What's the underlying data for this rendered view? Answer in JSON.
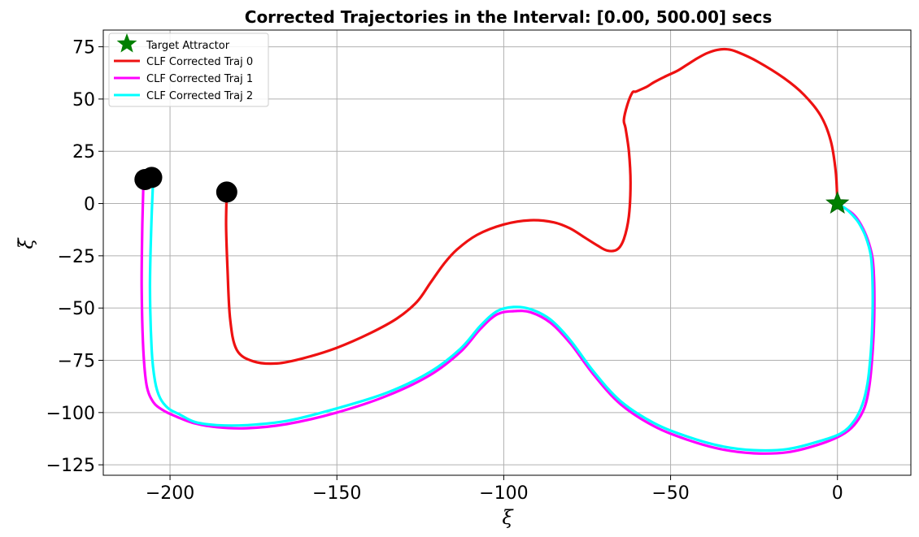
{
  "chart_data": {
    "type": "line",
    "title": "Corrected Trajectories in the Interval: [0.00, 500.00] secs",
    "xlabel": "ξ",
    "ylabel": "ξ̇",
    "xlim": [
      -220,
      22
    ],
    "ylim": [
      -130,
      83
    ],
    "xticks": [
      -200,
      -150,
      -100,
      -50,
      0
    ],
    "xtick_labels": [
      "−200",
      "−150",
      "−100",
      "−50",
      "0"
    ],
    "yticks": [
      75,
      50,
      25,
      0,
      -25,
      -50,
      -75,
      -100,
      -125
    ],
    "ytick_labels": [
      "75",
      "50",
      "25",
      "0",
      "−25",
      "−50",
      "−75",
      "−100",
      "−125"
    ],
    "grid": true,
    "legend_position": "top-left",
    "target": {
      "name": "Target Attractor",
      "x": 0,
      "y": 0,
      "color": "#008000"
    },
    "series": [
      {
        "name": "CLF Corrected Traj 0",
        "color": "#ee1111",
        "start": [
          -183,
          5.5
        ],
        "x": [
          -183,
          -183.2,
          -182.8,
          -182,
          -180,
          -175,
          -168,
          -160,
          -150,
          -140,
          -132,
          -126,
          -122,
          -118,
          -114,
          -108,
          -100,
          -92,
          -85,
          -80,
          -76,
          -72,
          -69,
          -66,
          -64,
          -62.5,
          -62,
          -62.5,
          -63.5,
          -64,
          -63,
          -61.5,
          -60.5,
          -59,
          -57,
          -55,
          -52,
          -48,
          -45,
          -42,
          -39,
          -36,
          -33,
          -30,
          -24,
          -16,
          -10,
          -5,
          -2,
          -0.5,
          0
        ],
        "y": [
          5.5,
          -10,
          -30,
          -55,
          -70,
          -75.5,
          -76.5,
          -74,
          -69,
          -62,
          -55,
          -47,
          -38,
          -29,
          -22,
          -15,
          -10,
          -8,
          -9,
          -12,
          -16,
          -20,
          -22.5,
          -22,
          -17,
          -6,
          10,
          25,
          36,
          40,
          47,
          53,
          53.5,
          54.5,
          56,
          58,
          60.5,
          63.5,
          66.5,
          69.5,
          72,
          73.5,
          73.8,
          72.5,
          68,
          60,
          52,
          42,
          30,
          15,
          0
        ]
      },
      {
        "name": "CLF Corrected Traj 1",
        "color": "#ff00ff",
        "start": [
          -207.5,
          11.5
        ],
        "x": [
          -208,
          -208.3,
          -208.5,
          -208,
          -207,
          -205,
          -202,
          -198,
          -193,
          -186,
          -177,
          -165,
          -150,
          -135,
          -122,
          -113,
          -107,
          -102,
          -97,
          -92,
          -86,
          -80,
          -73,
          -65,
          -55,
          -45,
          -35,
          -25,
          -15,
          -6,
          1,
          5,
          8,
          9.5,
          10.5,
          11,
          11,
          10.5,
          9,
          7,
          5,
          2.5,
          0.5,
          0
        ],
        "y": [
          8,
          -10,
          -40,
          -70,
          -87,
          -95,
          -99,
          -102,
          -105,
          -107,
          -107.5,
          -105.5,
          -100,
          -92,
          -82,
          -71,
          -60,
          -53,
          -51.5,
          -52,
          -57,
          -67,
          -82,
          -96,
          -106.5,
          -113,
          -117.5,
          -119.5,
          -119,
          -115.5,
          -111,
          -106,
          -98,
          -88,
          -72,
          -55,
          -38,
          -26,
          -17,
          -10,
          -5.5,
          -2.5,
          -0.5,
          0
        ]
      },
      {
        "name": "CLF Corrected Traj 2",
        "color": "#00ffff",
        "start": [
          -205.5,
          12.5
        ],
        "x": [
          -205,
          -205.6,
          -206,
          -205.5,
          -204.5,
          -203,
          -200.5,
          -197,
          -192.5,
          -186,
          -177,
          -165,
          -150,
          -135,
          -122,
          -113,
          -107,
          -102,
          -97,
          -92,
          -86,
          -80,
          -73,
          -65,
          -55,
          -45,
          -35,
          -25,
          -15,
          -6,
          1,
          5,
          7.5,
          9,
          10,
          10.5,
          10.5,
          10,
          8.5,
          6.5,
          4.5,
          2.5,
          0.5,
          0
        ],
        "y": [
          13,
          -10,
          -40,
          -70,
          -85,
          -93,
          -98,
          -101,
          -104.5,
          -106,
          -106,
          -104,
          -98,
          -90.5,
          -80.5,
          -69.5,
          -58.5,
          -51.5,
          -49.5,
          -50.5,
          -55.5,
          -65.5,
          -80.5,
          -94.5,
          -105,
          -111.5,
          -116,
          -118,
          -117.5,
          -114,
          -110,
          -104,
          -96,
          -86,
          -71,
          -54,
          -37,
          -25,
          -16,
          -9.5,
          -5.5,
          -2.5,
          -0.5,
          0
        ]
      }
    ]
  }
}
